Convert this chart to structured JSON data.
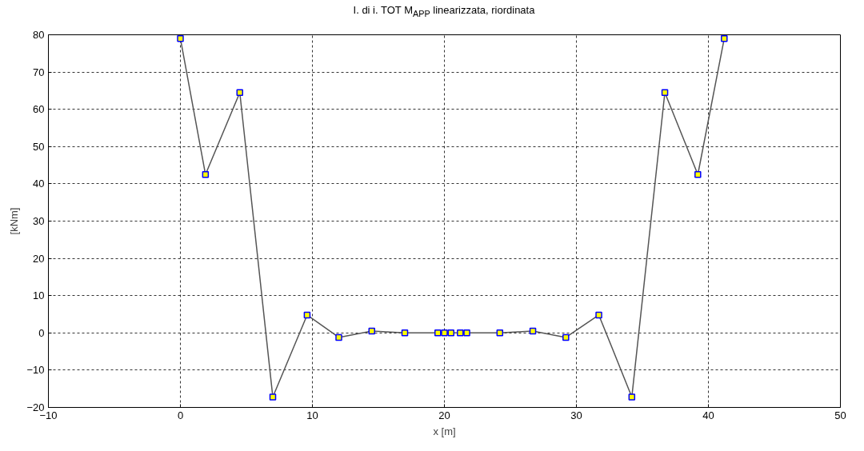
{
  "chart_data": {
    "type": "line",
    "title": "I. di i. TOT M$_{APP}$ linearizzata, riordinata",
    "xlabel": "x [m]",
    "ylabel": "[kNm]",
    "x": [
      0,
      1.9,
      4.5,
      7.0,
      9.6,
      12.0,
      14.5,
      17.0,
      19.5,
      20.0,
      20.5,
      21.2,
      21.7,
      24.2,
      26.7,
      29.2,
      31.7,
      34.2,
      36.7,
      39.2,
      41.2
    ],
    "series": [
      {
        "color": "#555555",
        "values": [
          79,
          42.5,
          64.5,
          -17.2,
          4.8,
          -1.2,
          0.5,
          0,
          0,
          0,
          0,
          0,
          0,
          0,
          0.5,
          -1.2,
          4.8,
          -17.2,
          64.5,
          42.5,
          79
        ]
      }
    ],
    "xlim": [
      -10,
      50
    ],
    "ylim": [
      -20,
      80
    ],
    "xticks": [
      -10,
      0,
      10,
      20,
      30,
      40,
      50
    ],
    "yticks": [
      -20,
      -10,
      0,
      10,
      20,
      30,
      40,
      50,
      60,
      70,
      80
    ],
    "grid": true,
    "marker": "square",
    "line_style": "solid"
  }
}
